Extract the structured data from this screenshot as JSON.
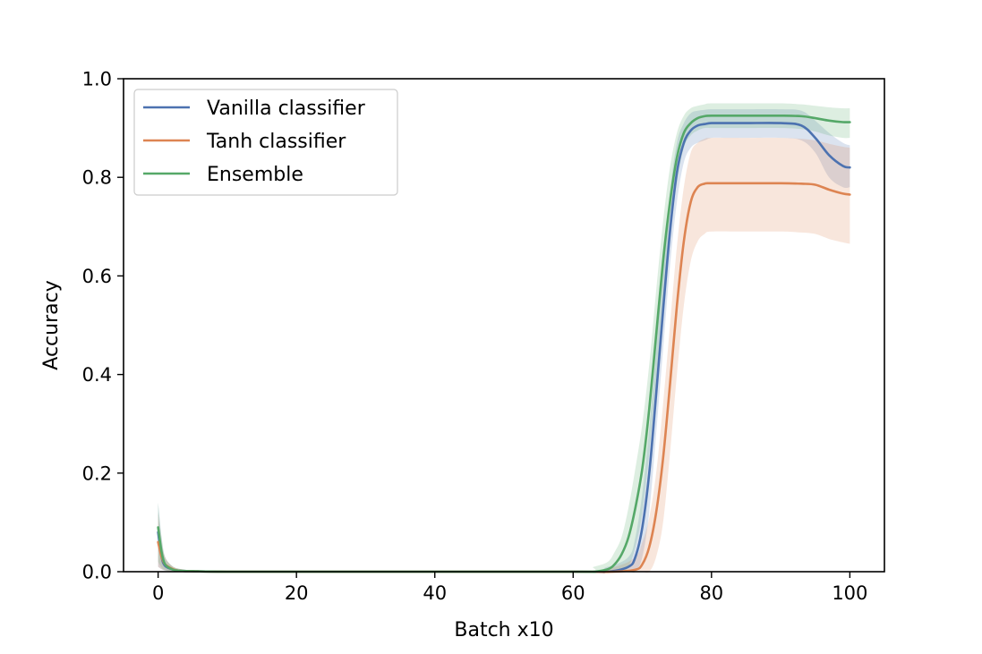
{
  "chart_data": {
    "type": "line",
    "title": "",
    "xlabel": "Batch x10",
    "ylabel": "Accuracy",
    "xlim": [
      -5,
      105
    ],
    "ylim": [
      0.0,
      1.0
    ],
    "xticks": [
      0,
      20,
      40,
      60,
      80,
      100
    ],
    "yticks": [
      0.0,
      0.2,
      0.4,
      0.6,
      0.8,
      1.0
    ],
    "xtick_labels": [
      "0",
      "20",
      "40",
      "60",
      "80",
      "100"
    ],
    "ytick_labels": [
      "0.0",
      "0.2",
      "0.4",
      "0.6",
      "0.8",
      "1.0"
    ],
    "grid": false,
    "legend_position": "top-left",
    "series": [
      {
        "name": "Vanilla classifier",
        "color": "#4c72b0",
        "x": [
          0,
          0.5,
          1,
          2,
          3,
          5,
          10,
          30,
          60,
          65,
          68,
          69,
          70,
          71,
          72,
          73,
          74,
          75,
          76,
          77,
          78,
          79,
          80,
          82,
          85,
          90,
          93,
          95,
          97,
          99,
          100
        ],
        "y": [
          0.08,
          0.03,
          0.012,
          0.005,
          0.002,
          0.001,
          0.0,
          0.0,
          0.0,
          0.0,
          0.01,
          0.03,
          0.09,
          0.2,
          0.36,
          0.53,
          0.69,
          0.81,
          0.87,
          0.895,
          0.905,
          0.908,
          0.91,
          0.91,
          0.91,
          0.91,
          0.905,
          0.88,
          0.845,
          0.823,
          0.82
        ],
        "band_lower": [
          0.01,
          0.005,
          0.002,
          0.0,
          0.0,
          0.0,
          0.0,
          0.0,
          0.0,
          0.0,
          0.0,
          0.0,
          0.03,
          0.12,
          0.28,
          0.45,
          0.62,
          0.75,
          0.83,
          0.86,
          0.87,
          0.875,
          0.88,
          0.88,
          0.88,
          0.88,
          0.875,
          0.85,
          0.8,
          0.78,
          0.78
        ],
        "band_upper": [
          0.14,
          0.07,
          0.03,
          0.012,
          0.006,
          0.003,
          0.001,
          0.0,
          0.0,
          0.01,
          0.03,
          0.07,
          0.16,
          0.29,
          0.45,
          0.62,
          0.77,
          0.87,
          0.91,
          0.93,
          0.935,
          0.937,
          0.938,
          0.938,
          0.938,
          0.938,
          0.935,
          0.915,
          0.89,
          0.87,
          0.865
        ]
      },
      {
        "name": "Tanh classifier",
        "color": "#dd8452",
        "x": [
          0,
          0.5,
          1,
          2,
          3,
          5,
          10,
          30,
          60,
          66,
          69,
          70,
          71,
          72,
          73,
          74,
          75,
          76,
          77,
          78,
          79,
          80,
          85,
          90,
          93,
          95,
          97,
          99,
          100
        ],
        "y": [
          0.06,
          0.03,
          0.015,
          0.006,
          0.002,
          0.001,
          0.0,
          0.0,
          0.0,
          0.0,
          0.004,
          0.015,
          0.05,
          0.12,
          0.23,
          0.38,
          0.54,
          0.67,
          0.75,
          0.78,
          0.787,
          0.788,
          0.788,
          0.788,
          0.787,
          0.785,
          0.775,
          0.767,
          0.765
        ],
        "band_lower": [
          0.01,
          0.005,
          0.003,
          0.0,
          0.0,
          0.0,
          0.0,
          0.0,
          0.0,
          0.0,
          0.0,
          0.0,
          0.0,
          0.03,
          0.1,
          0.24,
          0.4,
          0.54,
          0.63,
          0.67,
          0.685,
          0.69,
          0.69,
          0.69,
          0.688,
          0.685,
          0.675,
          0.668,
          0.665
        ],
        "band_upper": [
          0.12,
          0.06,
          0.03,
          0.012,
          0.006,
          0.003,
          0.001,
          0.0,
          0.0,
          0.01,
          0.03,
          0.06,
          0.11,
          0.2,
          0.34,
          0.5,
          0.66,
          0.78,
          0.85,
          0.87,
          0.878,
          0.88,
          0.88,
          0.88,
          0.878,
          0.875,
          0.868,
          0.862,
          0.86
        ]
      },
      {
        "name": "Ensemble",
        "color": "#55a868",
        "x": [
          0,
          0.5,
          1,
          2,
          3,
          5,
          10,
          30,
          60,
          63,
          65,
          66,
          67,
          68,
          69,
          70,
          71,
          72,
          73,
          74,
          75,
          76,
          77,
          78,
          79,
          80,
          85,
          90,
          93,
          95,
          97,
          99,
          100
        ],
        "y": [
          0.09,
          0.04,
          0.015,
          0.005,
          0.002,
          0.001,
          0.0,
          0.0,
          0.0,
          0.0,
          0.005,
          0.015,
          0.035,
          0.07,
          0.13,
          0.21,
          0.33,
          0.48,
          0.63,
          0.75,
          0.84,
          0.89,
          0.91,
          0.92,
          0.924,
          0.925,
          0.925,
          0.925,
          0.924,
          0.92,
          0.915,
          0.912,
          0.912
        ],
        "band_lower": [
          0.02,
          0.008,
          0.003,
          0.0,
          0.0,
          0.0,
          0.0,
          0.0,
          0.0,
          0.0,
          0.0,
          0.0,
          0.0,
          0.01,
          0.05,
          0.12,
          0.24,
          0.39,
          0.55,
          0.68,
          0.79,
          0.86,
          0.885,
          0.895,
          0.9,
          0.9,
          0.9,
          0.9,
          0.898,
          0.893,
          0.885,
          0.88,
          0.88
        ],
        "band_upper": [
          0.14,
          0.07,
          0.03,
          0.012,
          0.006,
          0.003,
          0.001,
          0.0,
          0.0,
          0.01,
          0.02,
          0.04,
          0.07,
          0.13,
          0.21,
          0.3,
          0.42,
          0.57,
          0.71,
          0.82,
          0.89,
          0.925,
          0.94,
          0.945,
          0.948,
          0.95,
          0.95,
          0.95,
          0.948,
          0.945,
          0.942,
          0.94,
          0.94
        ]
      }
    ]
  }
}
